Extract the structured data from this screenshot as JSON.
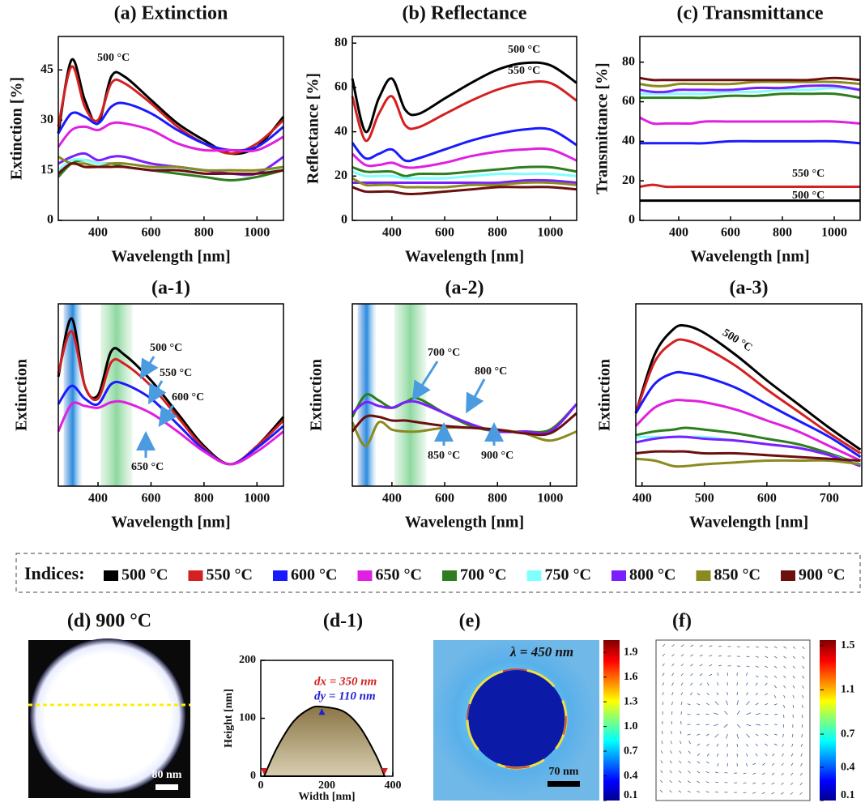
{
  "chart_data": [
    {
      "type": "line",
      "title": "(a) Extinction",
      "xlabel": "Wavelength [nm]",
      "ylabel": "Extinction [%]",
      "x": [
        250,
        300,
        350,
        400,
        450,
        500,
        600,
        700,
        800,
        900,
        1000,
        1100
      ],
      "series": [
        {
          "name": "500 °C",
          "color": "#000000",
          "values": [
            26,
            48,
            36,
            29,
            43,
            43,
            36,
            29,
            24,
            20,
            22,
            31
          ]
        },
        {
          "name": "550 °C",
          "color": "#d42020",
          "values": [
            28,
            46,
            34,
            30,
            41,
            41,
            35,
            28,
            23,
            20,
            23,
            30
          ]
        },
        {
          "name": "600 °C",
          "color": "#1a1aff",
          "values": [
            26,
            32,
            31,
            29,
            34,
            35,
            32,
            27,
            23,
            21,
            22,
            28
          ]
        },
        {
          "name": "650 °C",
          "color": "#e020e0",
          "values": [
            22,
            27,
            28,
            27,
            29,
            29,
            27,
            23,
            21,
            21,
            21,
            25
          ]
        },
        {
          "name": "700 °C",
          "color": "#2e7d1e",
          "values": [
            13,
            17,
            18,
            17,
            17,
            16,
            15,
            14,
            13,
            12,
            13,
            15
          ]
        },
        {
          "name": "750 °C",
          "color": "#80ffff",
          "values": [
            15,
            18,
            18,
            17,
            17,
            17,
            16,
            15,
            15,
            14,
            14,
            16
          ]
        },
        {
          "name": "800 °C",
          "color": "#7b1fff",
          "values": [
            17,
            19,
            20,
            18,
            19,
            19,
            17,
            16,
            15,
            14,
            14,
            19
          ]
        },
        {
          "name": "850 °C",
          "color": "#8a8a20",
          "values": [
            19,
            17,
            17,
            16,
            17,
            17,
            16,
            16,
            15,
            15,
            15,
            16
          ]
        },
        {
          "name": "900 °C",
          "color": "#6b0f0f",
          "values": [
            14,
            17,
            16,
            16,
            16,
            16,
            15,
            15,
            14,
            14,
            14,
            15
          ]
        }
      ],
      "xlim": [
        250,
        1100
      ],
      "ylim": [
        0,
        55
      ],
      "xticks": [
        400,
        600,
        800,
        1000
      ],
      "yticks": [
        0,
        15,
        30,
        45
      ],
      "annotations": [
        "500 °C"
      ]
    },
    {
      "type": "line",
      "title": "(b) Reflectance",
      "xlabel": "Wavelength [nm]",
      "ylabel": "Reflectance [%]",
      "x": [
        250,
        300,
        350,
        400,
        450,
        500,
        600,
        700,
        800,
        900,
        1000,
        1100
      ],
      "series": [
        {
          "name": "500 °C",
          "color": "#000000",
          "values": [
            64,
            40,
            55,
            64,
            50,
            48,
            55,
            62,
            68,
            71,
            70,
            62
          ]
        },
        {
          "name": "550 °C",
          "color": "#d42020",
          "values": [
            56,
            36,
            48,
            56,
            43,
            42,
            48,
            54,
            59,
            62,
            62,
            54
          ]
        },
        {
          "name": "600 °C",
          "color": "#1a1aff",
          "values": [
            35,
            28,
            30,
            32,
            27,
            28,
            32,
            36,
            39,
            41,
            41,
            34
          ]
        },
        {
          "name": "650 °C",
          "color": "#e020e0",
          "values": [
            30,
            25,
            25,
            26,
            24,
            24,
            26,
            29,
            31,
            32,
            32,
            27
          ]
        },
        {
          "name": "700 °C",
          "color": "#2e7d1e",
          "values": [
            24,
            22,
            22,
            22,
            20,
            21,
            21,
            22,
            23,
            24,
            24,
            22
          ]
        },
        {
          "name": "750 °C",
          "color": "#80ffff",
          "values": [
            22,
            20,
            20,
            20,
            19,
            19,
            19,
            20,
            21,
            21,
            21,
            20
          ]
        },
        {
          "name": "800 °C",
          "color": "#7b1fff",
          "values": [
            17,
            17,
            17,
            17,
            17,
            17,
            17,
            17,
            17,
            18,
            18,
            17
          ]
        },
        {
          "name": "850 °C",
          "color": "#8a8a20",
          "values": [
            19,
            16,
            16,
            16,
            15,
            15,
            15,
            16,
            16,
            17,
            17,
            16
          ]
        },
        {
          "name": "900 °C",
          "color": "#6b0f0f",
          "values": [
            15,
            13,
            13,
            13,
            12,
            12,
            13,
            14,
            15,
            15,
            15,
            14
          ]
        }
      ],
      "xlim": [
        250,
        1100
      ],
      "ylim": [
        0,
        83
      ],
      "xticks": [
        400,
        600,
        800,
        1000
      ],
      "yticks": [
        0,
        20,
        40,
        60,
        80
      ],
      "annotations": [
        "500 °C",
        "550 °C"
      ]
    },
    {
      "type": "line",
      "title": "(c) Transmittance",
      "xlabel": "Wavelength [nm]",
      "ylabel": "Transmittance [%]",
      "x": [
        250,
        300,
        350,
        400,
        450,
        500,
        600,
        700,
        800,
        900,
        1000,
        1100
      ],
      "series": [
        {
          "name": "500 °C",
          "color": "#000000",
          "values": [
            10,
            10,
            10,
            10,
            10,
            10,
            10,
            10,
            10,
            10,
            10,
            10
          ]
        },
        {
          "name": "550 °C",
          "color": "#d42020",
          "values": [
            17,
            18,
            17,
            17,
            17,
            17,
            17,
            17,
            17,
            17,
            17,
            17
          ]
        },
        {
          "name": "600 °C",
          "color": "#1a1aff",
          "values": [
            39,
            39,
            39,
            39,
            39,
            39,
            40,
            40,
            40,
            40,
            40,
            39
          ]
        },
        {
          "name": "650 °C",
          "color": "#e020e0",
          "values": [
            52,
            49,
            49,
            49,
            49,
            50,
            50,
            50,
            50,
            50,
            50,
            49
          ]
        },
        {
          "name": "700 °C",
          "color": "#2e7d1e",
          "values": [
            62,
            62,
            62,
            62,
            62,
            62,
            63,
            63,
            64,
            64,
            64,
            62
          ]
        },
        {
          "name": "750 °C",
          "color": "#80ffff",
          "values": [
            64,
            64,
            64,
            64,
            64,
            64,
            65,
            65,
            66,
            66,
            67,
            66
          ]
        },
        {
          "name": "800 °C",
          "color": "#7b1fff",
          "values": [
            66,
            65,
            65,
            66,
            66,
            66,
            66,
            67,
            67,
            68,
            68,
            66
          ]
        },
        {
          "name": "850 °C",
          "color": "#8a8a20",
          "values": [
            69,
            68,
            68,
            69,
            69,
            69,
            69,
            70,
            70,
            70,
            70,
            69
          ]
        },
        {
          "name": "900 °C",
          "color": "#6b0f0f",
          "values": [
            72,
            71,
            71,
            71,
            71,
            71,
            71,
            71,
            71,
            71,
            72,
            71
          ]
        }
      ],
      "xlim": [
        250,
        1100
      ],
      "ylim": [
        0,
        93
      ],
      "xticks": [
        400,
        600,
        800,
        1000
      ],
      "yticks": [
        0,
        20,
        40,
        60,
        80
      ],
      "annotations": [
        "550 °C",
        "500 °C"
      ]
    },
    {
      "type": "line",
      "title": "(a-1)",
      "xlabel": "Wavelength [nm]",
      "ylabel": "Extinction",
      "x": [
        250,
        300,
        350,
        400,
        450,
        500,
        600,
        700,
        800,
        900,
        1000,
        1100
      ],
      "series": [
        {
          "name": "500 °C",
          "color": "#000000",
          "values": [
            60,
            92,
            55,
            50,
            74,
            72,
            58,
            40,
            22,
            12,
            22,
            38
          ]
        },
        {
          "name": "550 °C",
          "color": "#d42020",
          "values": [
            62,
            85,
            55,
            48,
            68,
            67,
            55,
            38,
            21,
            12,
            22,
            36
          ]
        },
        {
          "name": "600 °C",
          "color": "#1a1aff",
          "values": [
            45,
            55,
            48,
            45,
            56,
            56,
            48,
            34,
            20,
            12,
            21,
            33
          ]
        },
        {
          "name": "650 °C",
          "color": "#e020e0",
          "values": [
            30,
            45,
            44,
            43,
            46,
            46,
            40,
            30,
            19,
            12,
            19,
            30
          ]
        }
      ],
      "xlim": [
        250,
        1100
      ],
      "ylim": [
        0,
        100
      ],
      "xticks": [
        400,
        600,
        800,
        1000
      ],
      "annotations": [
        "500 °C",
        "550 °C",
        "600 °C",
        "650 °C"
      ]
    },
    {
      "type": "line",
      "title": "(a-2)",
      "xlabel": "Wavelength [nm]",
      "ylabel": "Extinction",
      "x": [
        250,
        300,
        350,
        400,
        450,
        500,
        600,
        700,
        800,
        900,
        1000,
        1100
      ],
      "series": [
        {
          "name": "700 °C",
          "color": "#2e7d1e",
          "values": [
            38,
            50,
            47,
            43,
            46,
            48,
            40,
            33,
            30,
            30,
            31,
            45
          ]
        },
        {
          "name": "800 °C",
          "color": "#7b1fff",
          "values": [
            40,
            46,
            44,
            43,
            46,
            46,
            40,
            34,
            30,
            30,
            30,
            45
          ]
        },
        {
          "name": "850 °C",
          "color": "#8a8a20",
          "values": [
            35,
            22,
            35,
            31,
            30,
            30,
            32,
            32,
            31,
            29,
            25,
            30
          ]
        },
        {
          "name": "900 °C",
          "color": "#6b0f0f",
          "values": [
            30,
            38,
            38,
            36,
            36,
            35,
            33,
            32,
            31,
            29,
            29,
            40
          ]
        }
      ],
      "xlim": [
        250,
        1100
      ],
      "ylim": [
        0,
        100
      ],
      "xticks": [
        400,
        600,
        800,
        1000
      ],
      "annotations": [
        "700 °C",
        "800 °C",
        "850 °C",
        "900 °C"
      ]
    },
    {
      "type": "line",
      "title": "(a-3)",
      "xlabel": "Wavelength [nm]",
      "ylabel": "Extinction",
      "x": [
        390,
        420,
        450,
        470,
        500,
        550,
        600,
        650,
        700,
        750
      ],
      "series": [
        {
          "name": "500 °C",
          "color": "#000000",
          "values": [
            40,
            72,
            86,
            88,
            84,
            72,
            58,
            45,
            32,
            20
          ]
        },
        {
          "name": "550 °C",
          "color": "#d42020",
          "values": [
            40,
            68,
            79,
            80,
            76,
            66,
            53,
            41,
            29,
            18
          ]
        },
        {
          "name": "600 °C",
          "color": "#1a1aff",
          "values": [
            40,
            56,
            62,
            62,
            60,
            54,
            45,
            36,
            27,
            16
          ]
        },
        {
          "name": "650 °C",
          "color": "#e020e0",
          "values": [
            33,
            43,
            47,
            47,
            46,
            42,
            36,
            30,
            22,
            14
          ]
        },
        {
          "name": "700 °C",
          "color": "#2e7d1e",
          "values": [
            28,
            30,
            31,
            32,
            31,
            29,
            26,
            23,
            18,
            12
          ]
        },
        {
          "name": "750 °C",
          "color": "#80ffff",
          "values": [
            27,
            27,
            27,
            27,
            27,
            25,
            23,
            21,
            17,
            12
          ]
        },
        {
          "name": "800 °C",
          "color": "#7b1fff",
          "values": [
            24,
            26,
            27,
            27,
            26,
            25,
            23,
            21,
            17,
            11
          ]
        },
        {
          "name": "850 °C",
          "color": "#8a8a20",
          "values": [
            15,
            14,
            11,
            11,
            12,
            13,
            14,
            14,
            14,
            12
          ]
        },
        {
          "name": "900 °C",
          "color": "#6b0f0f",
          "values": [
            18,
            19,
            19,
            19,
            18,
            18,
            17,
            16,
            15,
            14
          ]
        }
      ],
      "xlim": [
        390,
        752
      ],
      "ylim": [
        0,
        100
      ],
      "xticks": [
        400,
        500,
        600,
        700
      ],
      "annotations": [
        "500 °C"
      ]
    },
    {
      "type": "area",
      "title": "(d-1)",
      "xlabel": "Width [nm]",
      "ylabel": "Height [nm]",
      "x": [
        10,
        50,
        100,
        150,
        185,
        250,
        300,
        350,
        375
      ],
      "values": [
        0,
        50,
        95,
        117,
        120,
        112,
        85,
        35,
        0
      ],
      "xlim": [
        0,
        400
      ],
      "ylim": [
        0,
        200
      ],
      "xticks": [
        0,
        200,
        400
      ],
      "yticks": [
        0,
        100,
        200
      ],
      "annotations": [
        "dx = 350 nm",
        "dy = 110 nm"
      ]
    }
  ],
  "legend": {
    "title": "Indices:"
  },
  "panels": {
    "d": {
      "title": "(d) 900 °C",
      "scale_bar": "80 nm"
    },
    "e": {
      "title": "(e)",
      "annotation": "λ = 450 nm",
      "scale_bar": "70 nm",
      "colorbar_lim": [
        0.1,
        2.05
      ],
      "colorbar_ticks": [
        0.1,
        0.4,
        0.7,
        {
          "value": 1,
          "label": "1.0"
        },
        1.3,
        1.6,
        1.9
      ]
    },
    "f": {
      "title": "(f)",
      "colorbar_lim": [
        0.1,
        1.55
      ],
      "colorbar_ticks": [
        0.1,
        0.4,
        0.7,
        1.1,
        1.5
      ]
    }
  }
}
